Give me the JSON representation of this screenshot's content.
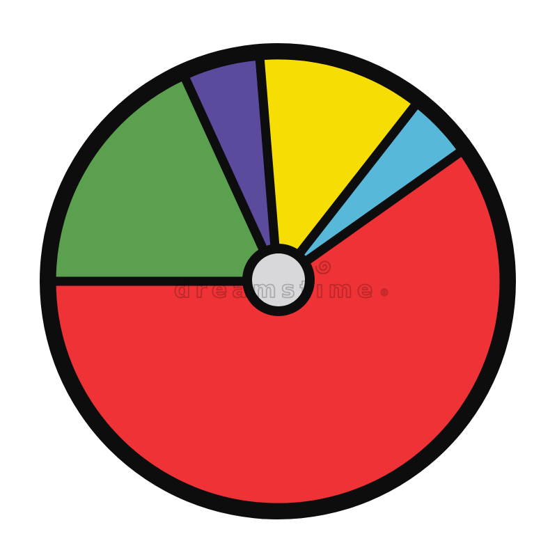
{
  "watermark": {
    "text": "dreamstime",
    "registered_mark": "®",
    "color": "#C9C9C9"
  },
  "chart_data": {
    "type": "pie",
    "title": "",
    "legend": false,
    "style": "cartoon-outline",
    "background_color": "#FFFFFF",
    "outline_color": "#0D0D0E",
    "hub_color": "#D8D8DA",
    "angle_convention": "degrees clockwise from 12 o'clock",
    "slices": [
      {
        "label": "green",
        "color": "#5BA04E",
        "percent": 18.2,
        "start_deg": 270.0,
        "end_deg": 335.5
      },
      {
        "label": "purple",
        "color": "#5C4A9C",
        "percent": 5.5,
        "start_deg": 335.5,
        "end_deg": 355.4
      },
      {
        "label": "yellow",
        "color": "#F6DE05",
        "percent": 11.8,
        "start_deg": 355.4,
        "end_deg": 398.0
      },
      {
        "label": "light-blue",
        "color": "#57B8DA",
        "percent": 4.6,
        "start_deg": 38.0,
        "end_deg": 54.7
      },
      {
        "label": "red",
        "color": "#EE3235",
        "percent": 59.9,
        "start_deg": 54.7,
        "end_deg": 270.0
      }
    ]
  }
}
